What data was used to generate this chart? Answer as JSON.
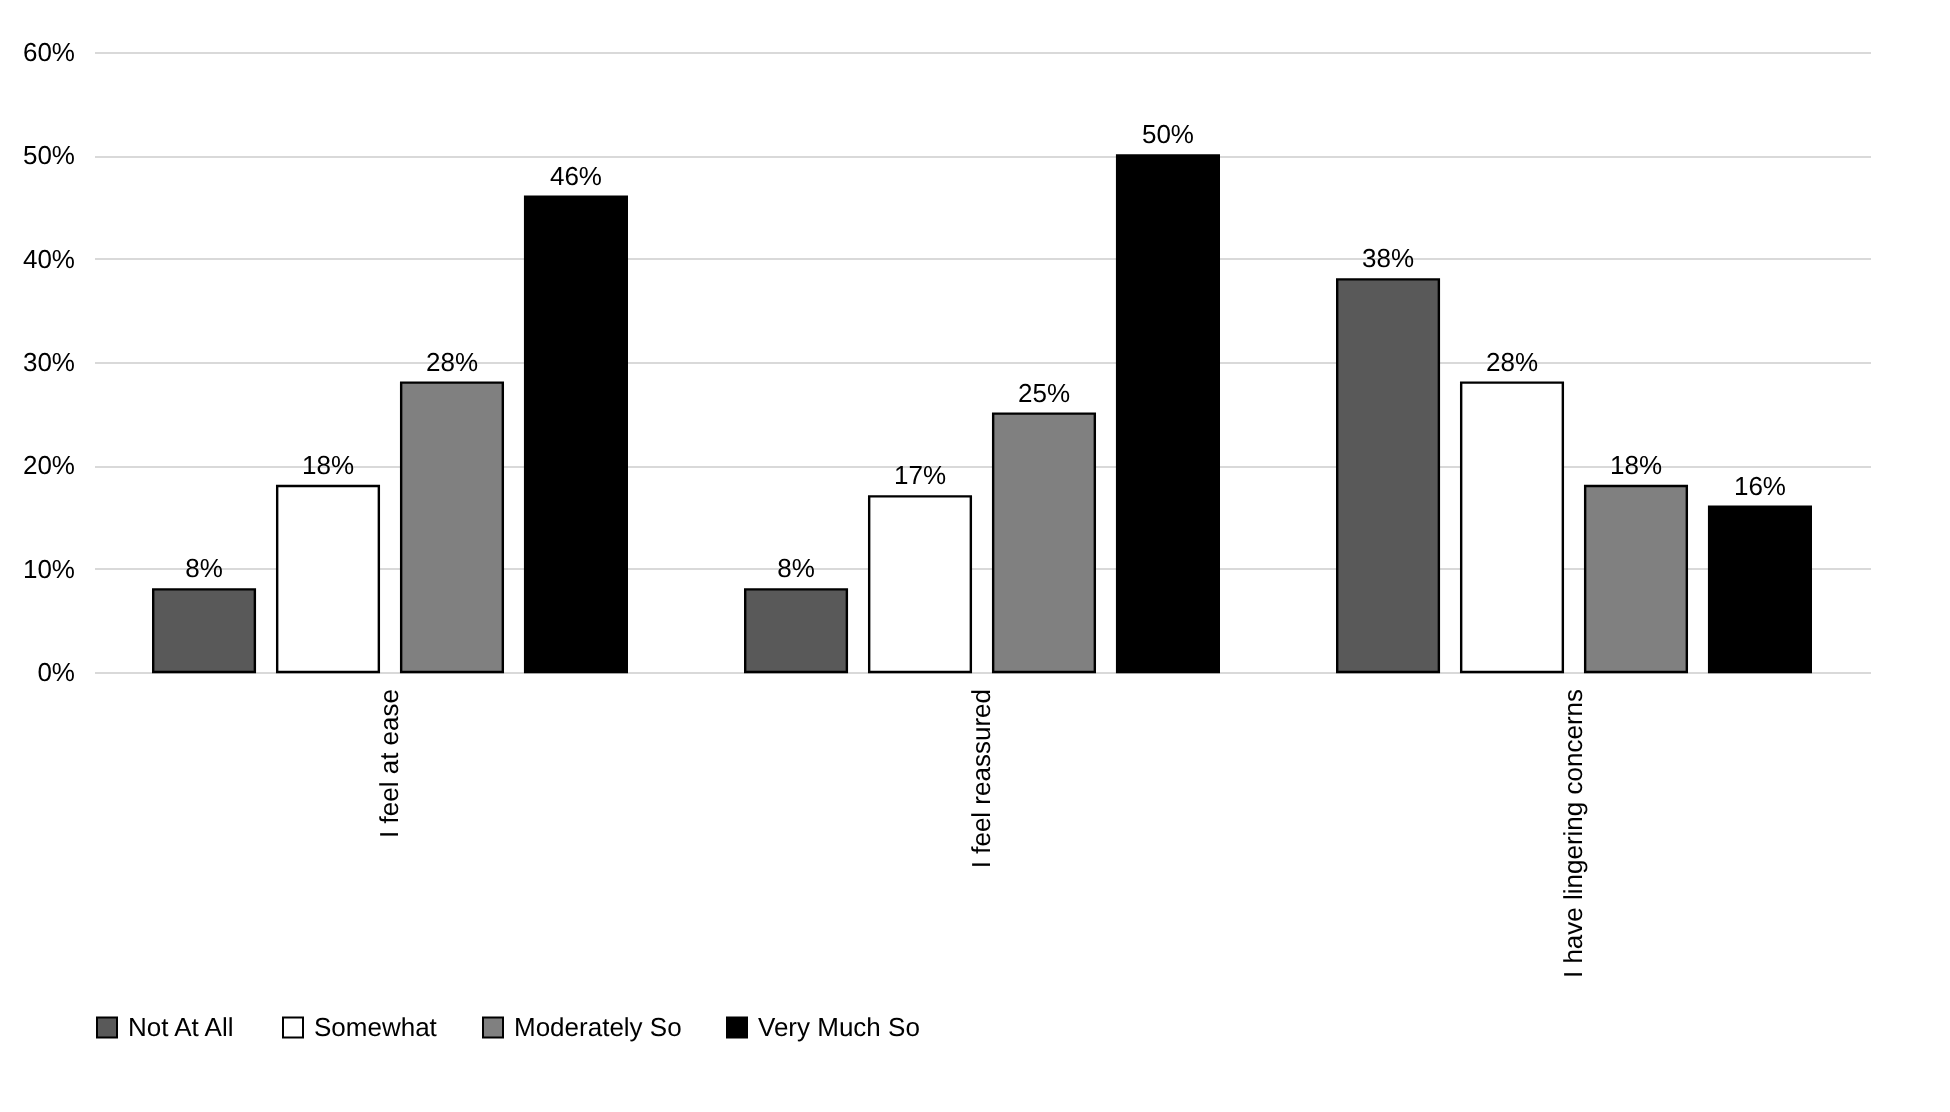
{
  "chart_data": {
    "type": "bar",
    "categories": [
      "I feel at ease",
      "I feel reassured",
      "I have lingering concerns"
    ],
    "series": [
      {
        "name": "Not At All",
        "color": "#595959",
        "values": [
          8,
          8,
          38
        ],
        "value_labels": [
          "8%",
          "8%",
          "38%"
        ]
      },
      {
        "name": "Somewhat",
        "color": "#ffffff",
        "values": [
          18,
          17,
          28
        ],
        "value_labels": [
          "18%",
          "17%",
          "28%"
        ]
      },
      {
        "name": "Moderately So",
        "color": "#808080",
        "values": [
          28,
          25,
          18
        ],
        "value_labels": [
          "28%",
          "25%",
          "18%"
        ]
      },
      {
        "name": "Very Much So",
        "color": "#000000",
        "values": [
          46,
          50,
          16
        ],
        "value_labels": [
          "46%",
          "50%",
          "16%"
        ]
      }
    ],
    "ylim": [
      0,
      60
    ],
    "yticks": [
      {
        "value": 0,
        "label": "0%"
      },
      {
        "value": 10,
        "label": "10%"
      },
      {
        "value": 20,
        "label": "20%"
      },
      {
        "value": 30,
        "label": "30%"
      },
      {
        "value": 40,
        "label": "40%"
      },
      {
        "value": 50,
        "label": "50%"
      },
      {
        "value": 60,
        "label": "60%"
      }
    ],
    "grid": "y",
    "legend": "bottom"
  }
}
